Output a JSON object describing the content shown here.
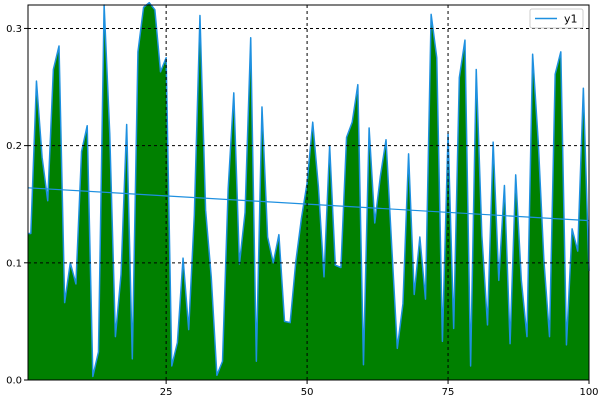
{
  "chart_data": {
    "type": "area",
    "title": "",
    "xlabel": "",
    "ylabel": "",
    "xlim": [
      0.5,
      100
    ],
    "ylim": [
      0.0,
      0.32
    ],
    "x_ticks": [
      25,
      50,
      75,
      100
    ],
    "y_ticks": [
      0.0,
      0.1,
      0.2,
      0.3
    ],
    "x_tick_labels": [
      "25",
      "50",
      "75",
      "100"
    ],
    "y_tick_labels": [
      "0.0",
      "0.1",
      "0.2",
      "0.3"
    ],
    "grid": "dashed, black, at major ticks",
    "legend": {
      "position": "top-right",
      "entries": [
        "y1"
      ]
    },
    "colors": {
      "area_fill": "#008000",
      "line": "#1e90e0"
    },
    "series": [
      {
        "name": "y1",
        "type": "area-with-line",
        "x": [
          1,
          2,
          3,
          4,
          5,
          6,
          7,
          8,
          9,
          10,
          11,
          12,
          13,
          14,
          15,
          16,
          17,
          18,
          19,
          20,
          21,
          22,
          23,
          24,
          25,
          26,
          27,
          28,
          29,
          30,
          31,
          32,
          33,
          34,
          35,
          36,
          37,
          38,
          39,
          40,
          41,
          42,
          43,
          44,
          45,
          46,
          47,
          48,
          49,
          50,
          51,
          52,
          53,
          54,
          55,
          56,
          57,
          58,
          59,
          60,
          61,
          62,
          63,
          64,
          65,
          66,
          67,
          68,
          69,
          70,
          71,
          72,
          73,
          74,
          75,
          76,
          77,
          78,
          79,
          80,
          81,
          82,
          83,
          84,
          85,
          86,
          87,
          88,
          89,
          90,
          91,
          92,
          93,
          94,
          95,
          96,
          97,
          98,
          99,
          100
        ],
        "values": [
          0.125,
          0.255,
          0.19,
          0.153,
          0.265,
          0.285,
          0.066,
          0.1,
          0.082,
          0.195,
          0.217,
          0.003,
          0.024,
          0.32,
          0.21,
          0.037,
          0.09,
          0.218,
          0.018,
          0.28,
          0.318,
          0.322,
          0.316,
          0.263,
          0.275,
          0.012,
          0.032,
          0.104,
          0.043,
          0.141,
          0.311,
          0.145,
          0.088,
          0.004,
          0.016,
          0.163,
          0.245,
          0.099,
          0.143,
          0.292,
          0.016,
          0.233,
          0.122,
          0.1,
          0.124,
          0.05,
          0.049,
          0.101,
          0.138,
          0.168,
          0.22,
          0.165,
          0.088,
          0.2,
          0.098,
          0.096,
          0.207,
          0.22,
          0.252,
          0.013,
          0.215,
          0.134,
          0.174,
          0.205,
          0.115,
          0.027,
          0.065,
          0.193,
          0.073,
          0.122,
          0.069,
          0.312,
          0.275,
          0.033,
          0.21,
          0.044,
          0.258,
          0.29,
          0.012,
          0.265,
          0.123,
          0.047,
          0.203,
          0.085,
          0.166,
          0.031,
          0.175,
          0.085,
          0.037,
          0.278,
          0.203,
          0.102,
          0.037,
          0.261,
          0.28,
          0.03,
          0.129,
          0.11,
          0.249,
          0.093
        ]
      },
      {
        "name": "",
        "type": "trend-line",
        "x": [
          0.5,
          100
        ],
        "values": [
          0.164,
          0.136
        ]
      }
    ]
  }
}
